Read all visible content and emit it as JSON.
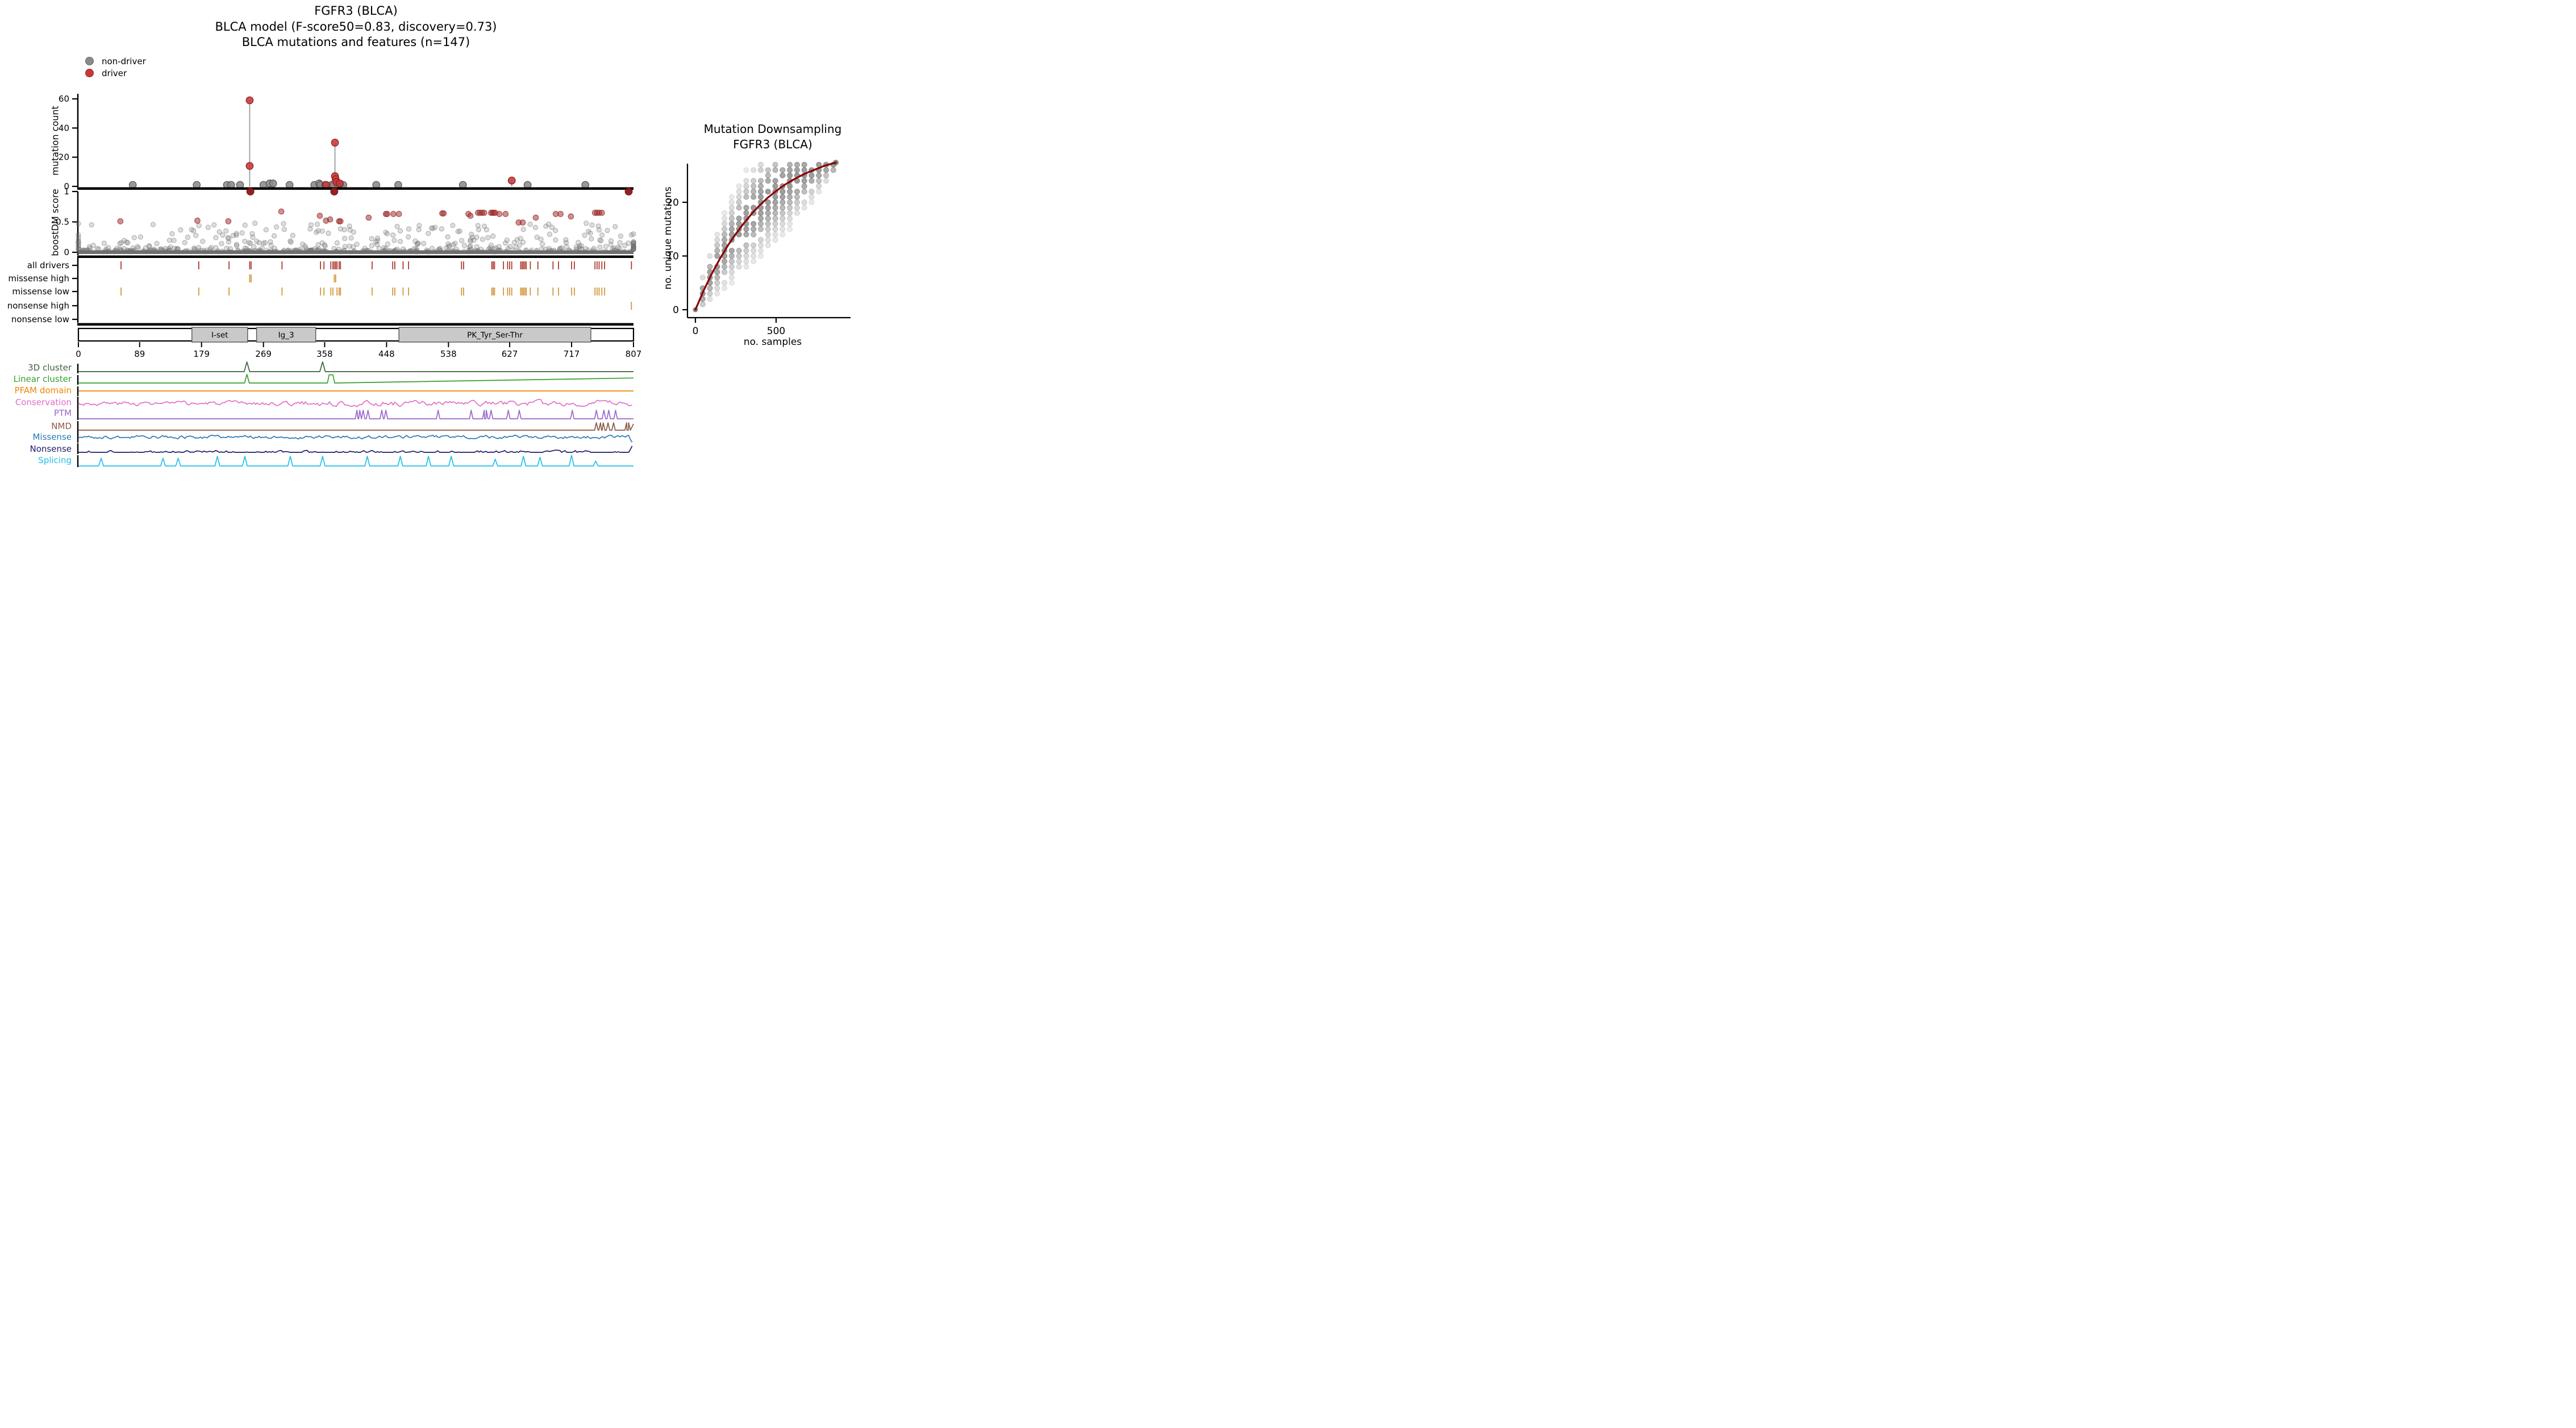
{
  "title_lines": [
    "FGFR3 (BLCA)",
    "BLCA model (F-score50=0.83, discovery=0.73)",
    "BLCA mutations and features (n=147)"
  ],
  "legend": {
    "items": [
      {
        "label": "non-driver",
        "color": "#8a8a8a"
      },
      {
        "label": "driver",
        "color": "#c63939"
      }
    ]
  },
  "chart_data": [
    {
      "id": "mutation_needle",
      "type": "scatter",
      "ylabel": "mutation count",
      "yticks": [
        0,
        20,
        40,
        60
      ],
      "ylim": [
        0,
        63
      ],
      "xlim": [
        0,
        807
      ],
      "stems": [
        [
          249,
          59
        ],
        [
          373,
          30
        ],
        [
          630,
          4
        ]
      ],
      "points": [
        [
          79,
          1,
          0
        ],
        [
          172,
          1,
          0
        ],
        [
          216,
          1,
          0
        ],
        [
          222,
          1,
          0
        ],
        [
          235,
          1,
          0
        ],
        [
          269,
          1,
          0
        ],
        [
          278,
          2,
          0
        ],
        [
          283,
          2,
          0
        ],
        [
          307,
          1,
          0
        ],
        [
          343,
          1,
          0
        ],
        [
          350,
          2,
          0
        ],
        [
          352,
          1,
          0
        ],
        [
          359,
          1,
          0
        ],
        [
          368,
          1,
          0
        ],
        [
          371,
          1,
          0
        ],
        [
          377,
          1,
          0
        ],
        [
          381,
          1,
          0
        ],
        [
          385,
          1,
          0
        ],
        [
          433,
          1,
          0
        ],
        [
          465,
          1,
          0
        ],
        [
          559,
          1,
          0
        ],
        [
          653,
          1,
          0
        ],
        [
          737,
          1,
          0
        ],
        [
          249,
          59,
          1
        ],
        [
          249,
          14,
          1
        ],
        [
          360,
          1,
          1
        ],
        [
          373,
          30,
          1
        ],
        [
          373,
          7,
          1
        ],
        [
          374,
          5,
          1
        ],
        [
          375,
          3,
          1
        ],
        [
          380,
          2,
          1
        ],
        [
          630,
          4,
          1
        ]
      ],
      "colors": {
        "nondriver": "#8b8b8b",
        "driver": "#c63939",
        "stem": "#9a9a9a"
      }
    },
    {
      "id": "boostdm_score",
      "type": "scatter",
      "ylabel": "boostDM score",
      "yticks": [
        0,
        0.5,
        1
      ],
      "ylim": [
        0,
        1
      ],
      "seed": 11,
      "n_nondriver": 630,
      "driver_points": [
        [
          61,
          0.51
        ],
        [
          173,
          0.52
        ],
        [
          218,
          0.51
        ],
        [
          250,
          1
        ],
        [
          295,
          0.67
        ],
        [
          351,
          0.6
        ],
        [
          360,
          0.52
        ],
        [
          366,
          0.54
        ],
        [
          372,
          1
        ],
        [
          379,
          0.51
        ],
        [
          381,
          0.51
        ],
        [
          422,
          0.57
        ],
        [
          447,
          0.63
        ],
        [
          449,
          0.63
        ],
        [
          458,
          0.63
        ],
        [
          466,
          0.63
        ],
        [
          529,
          0.64
        ],
        [
          531,
          0.64
        ],
        [
          567,
          0.63
        ],
        [
          570,
          0.6
        ],
        [
          581,
          0.65
        ],
        [
          584,
          0.65
        ],
        [
          587,
          0.65
        ],
        [
          590,
          0.65
        ],
        [
          600,
          0.65
        ],
        [
          602,
          0.65
        ],
        [
          604,
          0.65
        ],
        [
          606,
          0.65
        ],
        [
          612,
          0.63
        ],
        [
          621,
          0.63
        ],
        [
          640,
          0.49
        ],
        [
          646,
          0.49
        ],
        [
          665,
          0.57
        ],
        [
          694,
          0.63
        ],
        [
          701,
          0.63
        ],
        [
          716,
          0.59
        ],
        [
          751,
          0.65
        ],
        [
          754,
          0.65
        ],
        [
          757,
          0.65
        ],
        [
          761,
          0.65
        ],
        [
          800,
          1
        ]
      ],
      "colors": {
        "nondriver": "#7d7d7d",
        "driver": "#a83434",
        "driver_top": "#8c1616",
        "zero_band": "#6e6e6e"
      }
    },
    {
      "id": "driver_tracks",
      "type": "ticks",
      "rows": [
        {
          "label": "all drivers",
          "color": "#a93226",
          "ticks": [
            62,
            175,
            219,
            249,
            251,
            296,
            352,
            357,
            367,
            370,
            372,
            374,
            376,
            379,
            381,
            427,
            457,
            460,
            472,
            480,
            557,
            560,
            601,
            603,
            605,
            618,
            624,
            627,
            630,
            643,
            645,
            647,
            649,
            651,
            657,
            668,
            690,
            698,
            717,
            721,
            751,
            754,
            757,
            761,
            765,
            804
          ]
        },
        {
          "label": "missense high",
          "color": "#d1902f",
          "ticks": [
            249,
            251,
            372,
            374
          ]
        },
        {
          "label": "missense low",
          "color": "#d1902f",
          "ticks": [
            62,
            175,
            219,
            296,
            352,
            357,
            367,
            370,
            376,
            379,
            381,
            427,
            457,
            460,
            472,
            480,
            557,
            560,
            601,
            603,
            605,
            618,
            624,
            627,
            630,
            643,
            645,
            647,
            649,
            651,
            657,
            668,
            690,
            698,
            717,
            721,
            751,
            754,
            757,
            761,
            765
          ]
        },
        {
          "label": "nonsense high",
          "color": "#d1902f",
          "ticks": [
            804
          ]
        },
        {
          "label": "nonsense low",
          "color": "#d1902f",
          "ticks": []
        }
      ]
    },
    {
      "id": "protein_domains",
      "type": "domain-axis",
      "xmax": 807,
      "xticks": [
        0,
        89,
        179,
        269,
        358,
        448,
        538,
        627,
        717,
        807
      ],
      "domains": [
        {
          "name": "I-set",
          "start": 165,
          "end": 246
        },
        {
          "name": "Ig_3",
          "start": 259,
          "end": 345
        },
        {
          "name": "PK_Tyr_Ser-Thr",
          "start": 466,
          "end": 745
        }
      ],
      "colors": {
        "box": "#c9c9c9",
        "edge": "#555555"
      }
    },
    {
      "id": "feature_tracks",
      "type": "line-tracks",
      "rows": [
        {
          "label": "3D cluster",
          "color": "#3f603f",
          "style": "peaks",
          "pw": 4,
          "ph": 17,
          "peaks": [
            [
              245,
              1
            ],
            [
              355,
              1
            ]
          ]
        },
        {
          "label": "Linear cluster",
          "color": "#33a02c",
          "style": "peaks",
          "pw": 3.5,
          "ph": 16,
          "peaks": [
            [
              245,
              0.95
            ]
          ],
          "profile_extra": [
            [
              362,
              0
            ],
            [
              364.5,
              0.9
            ],
            [
              370,
              0.9
            ],
            [
              372.5,
              0
            ]
          ],
          "end_rise": 0.55
        },
        {
          "label": "PFAM domain",
          "color": "#f28500",
          "style": "flat"
        },
        {
          "label": "Conservation",
          "color": "#e06fc8",
          "style": "noise",
          "amp": 13,
          "seed": 3
        },
        {
          "label": "PTM",
          "color": "#9966cc",
          "style": "peaks",
          "pw": 2.5,
          "ph": 15,
          "peaks": [
            [
              405,
              1
            ],
            [
              409,
              1
            ],
            [
              414,
              1
            ],
            [
              421,
              1
            ],
            [
              441,
              1
            ],
            [
              447,
              1
            ],
            [
              523,
              1
            ],
            [
              571,
              1
            ],
            [
              590,
              1
            ],
            [
              593,
              1
            ],
            [
              600,
              1
            ],
            [
              625,
              1
            ],
            [
              641,
              1
            ],
            [
              718,
              1
            ],
            [
              753,
              1
            ],
            [
              764,
              1
            ],
            [
              771,
              1
            ],
            [
              781,
              1
            ]
          ]
        },
        {
          "label": "NMD",
          "color": "#8a5a44",
          "style": "peaks",
          "pw": 2.5,
          "ph": 13,
          "peaks": [
            [
              753,
              1
            ],
            [
              759,
              1
            ],
            [
              763,
              1
            ],
            [
              770,
              1
            ],
            [
              778,
              1
            ],
            [
              797,
              1
            ],
            [
              800,
              1
            ]
          ],
          "end_rise": 0.85
        },
        {
          "label": "Missense",
          "color": "#2878b5",
          "style": "noise",
          "amp": 11,
          "seed": 8,
          "end": "dip"
        },
        {
          "label": "Nonsense",
          "color": "#1a1a6e",
          "style": "noise",
          "amp": 5,
          "seed": 15,
          "end": "spike"
        },
        {
          "label": "Splicing",
          "color": "#22c0e8",
          "style": "peaks",
          "pw": 3.5,
          "ph": 17,
          "peaks": [
            [
              33,
              0.8
            ],
            [
              123,
              0.8
            ],
            [
              145,
              0.8
            ],
            [
              202,
              1
            ],
            [
              242,
              1
            ],
            [
              308,
              1
            ],
            [
              355,
              1
            ],
            [
              420,
              1
            ],
            [
              468,
              1
            ],
            [
              509,
              1
            ],
            [
              542,
              1
            ],
            [
              606,
              0.7
            ],
            [
              647,
              1
            ],
            [
              671,
              0.9
            ],
            [
              717,
              1.1
            ],
            [
              752,
              0.5
            ]
          ]
        }
      ]
    },
    {
      "id": "downsampling",
      "type": "scatter",
      "title_lines": [
        "Mutation Downsampling",
        "FGFR3 (BLCA)"
      ],
      "xlabel": "no. samples",
      "ylabel": "no. unique mutations",
      "xticks": [
        0,
        500
      ],
      "yticks": [
        0,
        10,
        20
      ],
      "xlim": [
        0,
        950
      ],
      "ylim": [
        0,
        28
      ],
      "curve": [
        [
          0,
          0
        ],
        [
          50,
          3.5
        ],
        [
          100,
          6.6
        ],
        [
          150,
          9.4
        ],
        [
          200,
          11.9
        ],
        [
          250,
          14.1
        ],
        [
          300,
          16.1
        ],
        [
          350,
          17.9
        ],
        [
          400,
          19.5
        ],
        [
          450,
          20.9
        ],
        [
          500,
          22.1
        ],
        [
          550,
          23.2
        ],
        [
          600,
          24.1
        ],
        [
          650,
          24.9
        ],
        [
          700,
          25.6
        ],
        [
          750,
          26.2
        ],
        [
          800,
          26.8
        ],
        [
          870,
          27.4
        ]
      ],
      "curve_color": "#8b0000",
      "dot_color": "#555555",
      "cloud": {
        "cols": 19,
        "step": 45,
        "seed": 5
      }
    }
  ]
}
